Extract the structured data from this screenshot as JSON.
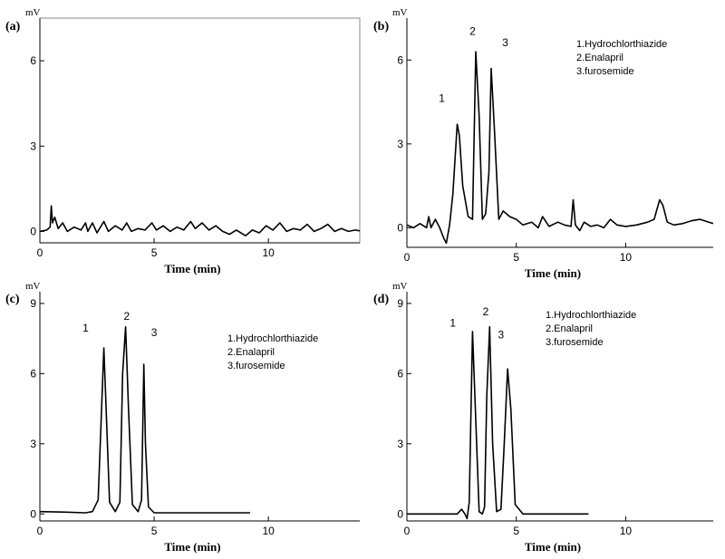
{
  "chart_data": [
    {
      "panel": "(a)",
      "type": "line",
      "ylabel": "mV",
      "xlabel": "Time (min)",
      "xlim": [
        0,
        14
      ],
      "ylim": [
        -0.4,
        7.5
      ],
      "xticks": [
        "0",
        "5",
        "10"
      ],
      "yticks": [
        "0",
        "3",
        "6"
      ],
      "peak_labels": [],
      "legend": [],
      "series": [
        {
          "x": [
            0,
            0.3,
            0.45,
            0.5,
            0.55,
            0.65,
            0.8,
            1.0,
            1.2,
            1.5,
            1.8,
            2.0,
            2.1,
            2.3,
            2.5,
            2.8,
            3.0,
            3.3,
            3.6,
            3.8,
            4.0,
            4.3,
            4.6,
            4.9,
            5.1,
            5.4,
            5.7,
            6.0,
            6.3,
            6.6,
            6.8,
            7.1,
            7.4,
            7.7,
            8.0,
            8.3,
            8.6,
            9.0,
            9.3,
            9.6,
            9.9,
            10.2,
            10.5,
            10.8,
            11.1,
            11.4,
            11.7,
            12.0,
            12.3,
            12.6,
            12.9,
            13.2,
            13.5,
            13.8,
            14.0
          ],
          "values": [
            0.0,
            0.05,
            0.15,
            0.9,
            0.3,
            0.5,
            0.1,
            0.3,
            0.0,
            0.15,
            0.05,
            0.3,
            0.0,
            0.3,
            -0.05,
            0.35,
            0.0,
            0.2,
            0.05,
            0.3,
            0.0,
            0.1,
            0.05,
            0.3,
            0.05,
            0.2,
            0.0,
            0.15,
            0.05,
            0.35,
            0.1,
            0.3,
            0.05,
            0.2,
            0.0,
            -0.1,
            0.05,
            -0.15,
            0.05,
            -0.05,
            0.2,
            0.05,
            0.3,
            0.0,
            0.1,
            0.05,
            0.25,
            0.0,
            0.1,
            0.25,
            0.0,
            0.1,
            0.0,
            0.05,
            0.02
          ]
        }
      ]
    },
    {
      "panel": "(b)",
      "type": "line",
      "ylabel": "mV",
      "xlabel": "Time (min)",
      "xlim": [
        0,
        14
      ],
      "ylim": [
        -0.7,
        7.5
      ],
      "xticks": [
        "0",
        "5",
        "10"
      ],
      "yticks": [
        "0",
        "3",
        "6"
      ],
      "peak_labels": [
        {
          "text": "1",
          "x": 1.6,
          "y": 4.5
        },
        {
          "text": "2",
          "x": 3.0,
          "y": 6.9
        },
        {
          "text": "3",
          "x": 4.5,
          "y": 6.5
        }
      ],
      "legend": [
        "1.Hydrochlorthiazide",
        "2.Enalapril",
        "3.furosemide"
      ],
      "series": [
        {
          "x": [
            0,
            0.3,
            0.6,
            0.9,
            1.0,
            1.1,
            1.3,
            1.5,
            1.7,
            1.8,
            1.95,
            2.1,
            2.3,
            2.4,
            2.55,
            2.8,
            3.0,
            3.15,
            3.3,
            3.45,
            3.6,
            3.75,
            3.85,
            4.0,
            4.2,
            4.4,
            4.7,
            5.0,
            5.3,
            5.7,
            6.0,
            6.2,
            6.5,
            6.9,
            7.2,
            7.5,
            7.6,
            7.7,
            7.9,
            8.1,
            8.4,
            8.7,
            9.0,
            9.3,
            9.6,
            10.0,
            10.5,
            11.0,
            11.3,
            11.55,
            11.7,
            11.9,
            12.2,
            12.6,
            13.0,
            13.4,
            13.8,
            14.0
          ],
          "values": [
            0.1,
            0.0,
            0.15,
            0.0,
            0.4,
            0.0,
            0.3,
            0.0,
            -0.4,
            -0.55,
            0.1,
            1.2,
            3.7,
            3.3,
            1.5,
            0.4,
            0.3,
            6.3,
            4.0,
            0.3,
            0.5,
            2.0,
            5.7,
            3.5,
            0.3,
            0.6,
            0.4,
            0.3,
            0.1,
            0.2,
            0.0,
            0.4,
            0.05,
            0.2,
            0.1,
            0.05,
            1.0,
            0.1,
            -0.1,
            0.2,
            0.05,
            0.1,
            0.0,
            0.3,
            0.1,
            0.05,
            0.1,
            0.2,
            0.3,
            1.0,
            0.8,
            0.2,
            0.1,
            0.15,
            0.25,
            0.3,
            0.2,
            0.15
          ]
        }
      ]
    },
    {
      "panel": "(c)",
      "type": "line",
      "ylabel": "mV",
      "xlabel": "Time (min)",
      "xlim": [
        0,
        14
      ],
      "ylim": [
        -0.3,
        9.5
      ],
      "xticks": [
        "0",
        "5",
        "10"
      ],
      "yticks": [
        "0",
        "3",
        "6",
        "9"
      ],
      "peak_labels": [
        {
          "text": "1",
          "x": 2.0,
          "y": 7.8
        },
        {
          "text": "2",
          "x": 3.8,
          "y": 8.3
        },
        {
          "text": "3",
          "x": 5.0,
          "y": 7.6
        }
      ],
      "legend": [
        "1.Hydrochlorthiazide",
        "2.Enalapril",
        "3.furosemide"
      ],
      "series": [
        {
          "x": [
            0,
            1.0,
            2.0,
            2.3,
            2.55,
            2.7,
            2.8,
            2.9,
            3.05,
            3.3,
            3.5,
            3.62,
            3.75,
            3.88,
            4.05,
            4.3,
            4.45,
            4.55,
            4.62,
            4.75,
            5.0,
            6.0,
            7.0,
            8.0,
            9.2
          ],
          "values": [
            0.1,
            0.08,
            0.05,
            0.1,
            0.6,
            4.5,
            7.1,
            4.5,
            0.5,
            0.1,
            0.5,
            6.0,
            8.0,
            4.5,
            0.4,
            0.1,
            0.6,
            6.4,
            3.0,
            0.3,
            0.05,
            0.05,
            0.05,
            0.05,
            0.05
          ]
        }
      ]
    },
    {
      "panel": "(d)",
      "type": "line",
      "ylabel": "mV",
      "xlabel": "Time (min)",
      "xlim": [
        0,
        14
      ],
      "ylim": [
        -0.3,
        9.5
      ],
      "xticks": [
        "0",
        "5",
        "10"
      ],
      "yticks": [
        "0",
        "3",
        "6",
        "9"
      ],
      "peak_labels": [
        {
          "text": "1",
          "x": 2.1,
          "y": 8.0
        },
        {
          "text": "2",
          "x": 3.6,
          "y": 8.5
        },
        {
          "text": "3",
          "x": 4.3,
          "y": 7.5
        }
      ],
      "legend": [
        "1.Hydrochlorthiazide",
        "2.Enalapril",
        "3.furosemide"
      ],
      "series": [
        {
          "x": [
            0,
            1.5,
            2.3,
            2.5,
            2.65,
            2.75,
            2.85,
            3.0,
            3.15,
            3.3,
            3.45,
            3.55,
            3.65,
            3.78,
            3.92,
            4.1,
            4.3,
            4.45,
            4.6,
            4.75,
            4.95,
            5.3,
            6.0,
            7.0,
            8.3
          ],
          "values": [
            0.0,
            0.0,
            0.0,
            0.2,
            0.0,
            -0.2,
            0.5,
            7.8,
            4.0,
            0.1,
            0.0,
            0.3,
            5.0,
            8.0,
            3.0,
            0.1,
            0.2,
            3.0,
            6.2,
            4.5,
            0.4,
            0.0,
            0.0,
            0.0,
            0.0
          ]
        }
      ]
    }
  ]
}
